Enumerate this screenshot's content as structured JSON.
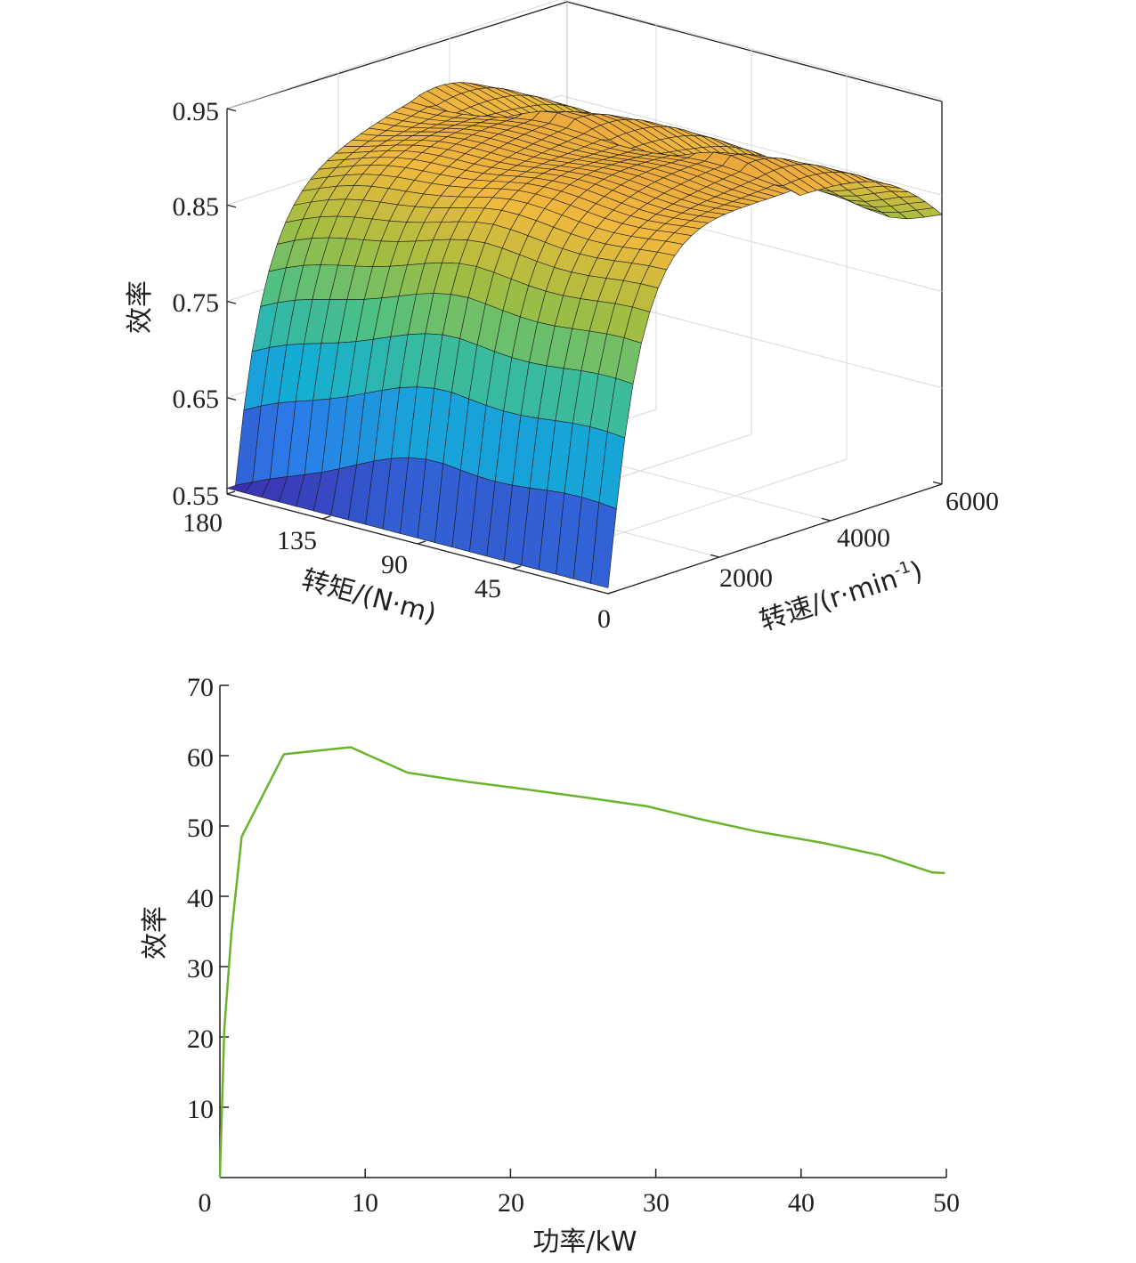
{
  "chart_data": [
    {
      "type": "surface",
      "zlabel": "效率",
      "xlabel": "转矩/(N·m)",
      "ylabel_prefix": "转速/(r·min",
      "ylabel_sup": "-1",
      "ylabel_suffix": ")",
      "zticks": [
        "0.95",
        "0.85",
        "0.75",
        "0.65",
        "0.55"
      ],
      "xticks": [
        "180",
        "135",
        "90",
        "45",
        "0"
      ],
      "yticks": [
        "2000",
        "4000",
        "6000"
      ],
      "xlim": [
        0,
        180
      ],
      "ylim": [
        0,
        6000
      ],
      "zlim": [
        0.55,
        0.95
      ],
      "colormap": [
        "#3e26a8",
        "#2c7ce9",
        "#13aed4",
        "#4bc086",
        "#a5bd3f",
        "#f0b93e",
        "#e89a3a"
      ],
      "grid": true
    },
    {
      "type": "line",
      "xlabel": "功率/kW",
      "ylabel": "效率",
      "xlim": [
        0,
        50
      ],
      "ylim": [
        0,
        70
      ],
      "xticks": [
        "0",
        "10",
        "20",
        "30",
        "40",
        "50"
      ],
      "yticks": [
        "10",
        "20",
        "30",
        "40",
        "50",
        "60",
        "70"
      ],
      "color": "#6ab42d",
      "x": [
        0,
        0.3,
        0.8,
        1.5,
        4.4,
        9.0,
        12.9,
        17.0,
        20.0,
        25.0,
        29.4,
        33.0,
        37.0,
        41.5,
        45.5,
        49.0,
        49.9
      ],
      "y": [
        0,
        21,
        35,
        48.5,
        60.2,
        61.2,
        57.6,
        56.3,
        55.5,
        54.1,
        52.8,
        51.0,
        49.2,
        47.6,
        45.8,
        43.4,
        43.3
      ]
    }
  ]
}
